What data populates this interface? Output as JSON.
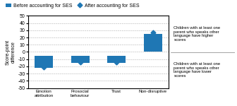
{
  "chart_data": {
    "type": "bar",
    "categories": [
      "Emotion\nattribution",
      "Prosocial\nbehaviour",
      "Trust",
      "Non-disruptive"
    ],
    "ylabel": "Score-point\ndifference",
    "ylim": [
      -50,
      50
    ],
    "yticks": [
      -50,
      -40,
      -30,
      -20,
      -10,
      0,
      10,
      20,
      30,
      40,
      50
    ],
    "grid": true,
    "legend": "upper left",
    "annotations": [
      "Children with at least one\nparent who speaks other\nlanguage have higher\nscores",
      "Children with at least one\nparent who speaks other\nlanguage have lower\nscores"
    ],
    "series": [
      {
        "name": "Before accounting for SES",
        "type": "bar",
        "values": [
          -5,
          -5,
          -5,
          25
        ],
        "bottoms": [
          -22,
          -15,
          -15,
          0
        ]
      },
      {
        "name": "After accounting for SES",
        "type": "scatter",
        "marker": "diamond",
        "values": [
          -21,
          -14,
          -14,
          27
        ]
      }
    ]
  }
}
